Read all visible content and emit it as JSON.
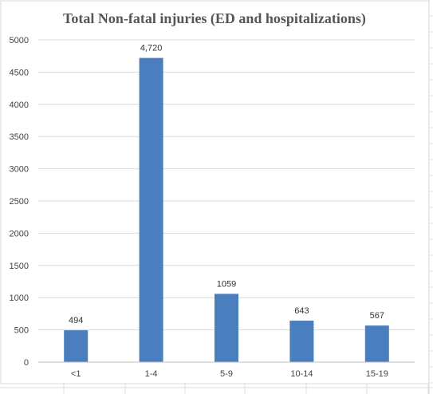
{
  "chart_data": {
    "type": "bar",
    "title": "Total Non-fatal injuries (ED and hospitalizations)",
    "xlabel": "",
    "ylabel": "",
    "categories": [
      "<1",
      "1-4",
      "5-9",
      "10-14",
      "15-19"
    ],
    "values": [
      494,
      4720,
      1059,
      643,
      567
    ],
    "data_labels": [
      "494",
      "4,720",
      "1059",
      "643",
      "567"
    ],
    "ylim": [
      0,
      5000
    ],
    "yticks": [
      0,
      500,
      1000,
      1500,
      2000,
      2500,
      3000,
      3500,
      4000,
      4500,
      5000
    ],
    "grid": true,
    "legend": "none",
    "bar_color": "#4a7ebf"
  }
}
